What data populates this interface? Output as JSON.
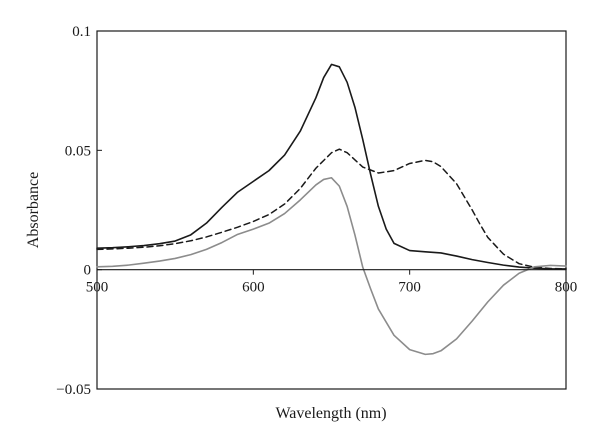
{
  "chart_data": {
    "type": "line",
    "xlabel": "Wavelength (nm)",
    "ylabel": "Absorbance",
    "xlim": [
      500,
      800
    ],
    "ylim": [
      -0.05,
      0.1
    ],
    "x_ticks": [
      500,
      600,
      700,
      800
    ],
    "x_tick_labels": [
      "500",
      "600",
      "700",
      "800"
    ],
    "y_ticks": [
      -0.05,
      0,
      0.05,
      0.1
    ],
    "y_tick_labels": [
      "−0.05",
      "0",
      "0.05",
      "0.1"
    ],
    "grid": false,
    "legend": "none",
    "series": [
      {
        "style": "solid",
        "color": "#1a1a1a",
        "x": [
          500,
          510,
          520,
          530,
          540,
          550,
          560,
          570,
          580,
          590,
          600,
          610,
          620,
          630,
          640,
          645,
          650,
          655,
          660,
          665,
          670,
          675,
          680,
          685,
          690,
          700,
          710,
          720,
          730,
          740,
          750,
          760,
          770,
          780,
          790,
          800
        ],
        "y": [
          0.009,
          0.0092,
          0.0096,
          0.0101,
          0.0109,
          0.012,
          0.0146,
          0.0195,
          0.0262,
          0.0325,
          0.037,
          0.0415,
          0.048,
          0.058,
          0.072,
          0.0805,
          0.086,
          0.085,
          0.0785,
          0.068,
          0.0545,
          0.04,
          0.0265,
          0.017,
          0.011,
          0.008,
          0.0075,
          0.007,
          0.0057,
          0.0042,
          0.003,
          0.0019,
          0.0011,
          0.0006,
          0.0003,
          0.0003
        ]
      },
      {
        "style": "dashed",
        "color": "#1a1a1a",
        "x": [
          500,
          510,
          520,
          530,
          540,
          550,
          560,
          570,
          580,
          590,
          600,
          610,
          620,
          630,
          640,
          650,
          655,
          660,
          670,
          680,
          690,
          700,
          710,
          715,
          720,
          730,
          740,
          745,
          750,
          760,
          770,
          780,
          790,
          800
        ],
        "y": [
          0.0085,
          0.0087,
          0.009,
          0.0094,
          0.01,
          0.0109,
          0.0121,
          0.0137,
          0.0157,
          0.0178,
          0.0202,
          0.0231,
          0.0275,
          0.034,
          0.0425,
          0.049,
          0.0505,
          0.049,
          0.043,
          0.0405,
          0.0415,
          0.0445,
          0.0458,
          0.0452,
          0.0432,
          0.036,
          0.025,
          0.019,
          0.0135,
          0.0065,
          0.0025,
          0.001,
          0.0005,
          0.0003
        ]
      },
      {
        "style": "solid",
        "color": "#8c8c8c",
        "x": [
          500,
          510,
          520,
          530,
          540,
          550,
          560,
          570,
          580,
          590,
          600,
          610,
          620,
          630,
          640,
          645,
          650,
          655,
          660,
          665,
          670,
          675,
          680,
          690,
          700,
          710,
          715,
          720,
          730,
          740,
          750,
          760,
          770,
          780,
          790,
          800
        ],
        "y": [
          0.0012,
          0.0014,
          0.0019,
          0.0027,
          0.0036,
          0.0047,
          0.0063,
          0.0085,
          0.0114,
          0.0148,
          0.017,
          0.0195,
          0.0235,
          0.0292,
          0.0355,
          0.0378,
          0.0385,
          0.035,
          0.0265,
          0.0145,
          0.001,
          -0.008,
          -0.0165,
          -0.0275,
          -0.0335,
          -0.0355,
          -0.0352,
          -0.034,
          -0.029,
          -0.0215,
          -0.0135,
          -0.0065,
          -0.0015,
          0.0012,
          0.0018,
          0.0015
        ]
      }
    ]
  }
}
